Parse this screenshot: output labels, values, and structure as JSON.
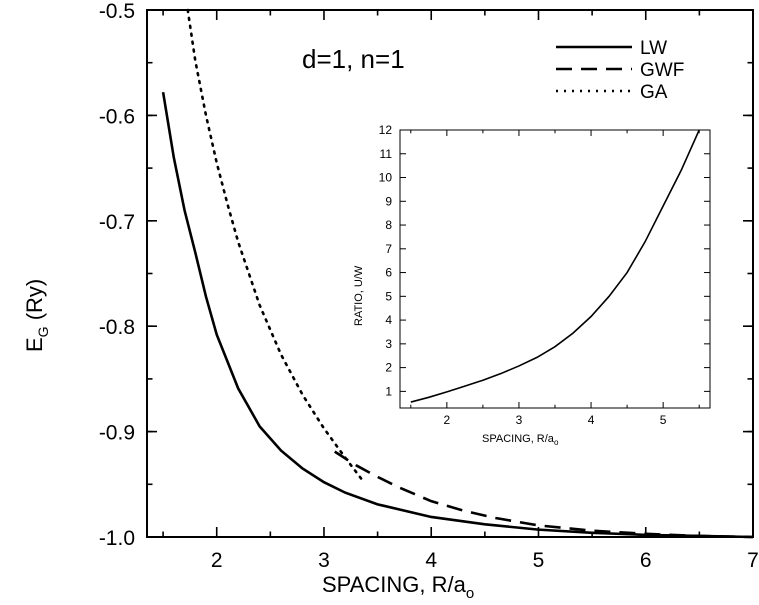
{
  "chart_data": [
    {
      "type": "line",
      "title": "",
      "annotation": "d=1, n=1",
      "xlabel": "SPACING, R/a",
      "xlabel_sub": "o",
      "ylabel": "E",
      "ylabel_sub": "G",
      "ylabel_suffix": " (Ry)",
      "xlim": [
        1.35,
        7.0
      ],
      "ylim": [
        -1.0,
        -0.5
      ],
      "xticks": [
        2,
        3,
        4,
        5,
        6,
        7
      ],
      "yticks": [
        -1.0,
        -0.9,
        -0.8,
        -0.7,
        -0.6,
        -0.5
      ],
      "ytick_labels": [
        "-1.0",
        "-0.9",
        "-0.8",
        "-0.7",
        "-0.6",
        "-0.5"
      ],
      "legend_position": "top-right",
      "series": [
        {
          "name": "LW",
          "style": "solid",
          "x": [
            1.5,
            1.6,
            1.7,
            1.8,
            1.9,
            2.0,
            2.2,
            2.4,
            2.6,
            2.8,
            3.0,
            3.2,
            3.5,
            4.0,
            4.5,
            5.0,
            5.5,
            6.0,
            6.5,
            7.0
          ],
          "y": [
            -0.578,
            -0.64,
            -0.69,
            -0.73,
            -0.772,
            -0.808,
            -0.859,
            -0.895,
            -0.918,
            -0.935,
            -0.948,
            -0.958,
            -0.969,
            -0.981,
            -0.988,
            -0.993,
            -0.996,
            -0.998,
            -0.999,
            -1.0
          ]
        },
        {
          "name": "GWF",
          "style": "dashed",
          "x": [
            3.1,
            3.3,
            3.5,
            3.7,
            4.0,
            4.3,
            4.6,
            5.0,
            5.5,
            6.0,
            6.5,
            7.0
          ],
          "y": [
            -0.919,
            -0.932,
            -0.943,
            -0.953,
            -0.966,
            -0.975,
            -0.982,
            -0.989,
            -0.994,
            -0.997,
            -0.999,
            -1.0
          ]
        },
        {
          "name": "GA",
          "style": "dotted",
          "x": [
            1.73,
            1.8,
            1.9,
            2.0,
            2.1,
            2.2,
            2.4,
            2.6,
            2.8,
            3.0,
            3.2,
            3.35
          ],
          "y": [
            -0.5,
            -0.548,
            -0.6,
            -0.645,
            -0.684,
            -0.72,
            -0.78,
            -0.827,
            -0.865,
            -0.897,
            -0.925,
            -0.945
          ]
        }
      ]
    },
    {
      "type": "line",
      "title": "",
      "xlabel": "SPACING, R/a",
      "xlabel_sub": "o",
      "ylabel": "RATIO, U/W",
      "xlim": [
        1.35,
        5.65
      ],
      "ylim": [
        0.3,
        12
      ],
      "xticks": [
        2,
        3,
        4,
        5
      ],
      "yticks": [
        1,
        2,
        3,
        4,
        5,
        6,
        7,
        8,
        9,
        10,
        11,
        12
      ],
      "series": [
        {
          "name": "",
          "style": "solid",
          "x": [
            1.5,
            1.75,
            2.0,
            2.25,
            2.5,
            2.75,
            3.0,
            3.25,
            3.5,
            3.75,
            4.0,
            4.25,
            4.5,
            4.75,
            5.0,
            5.25,
            5.5
          ],
          "y": [
            0.55,
            0.75,
            0.98,
            1.22,
            1.47,
            1.75,
            2.07,
            2.43,
            2.88,
            3.45,
            4.15,
            5.0,
            6.0,
            7.3,
            8.8,
            10.3,
            12.0
          ]
        }
      ]
    }
  ]
}
